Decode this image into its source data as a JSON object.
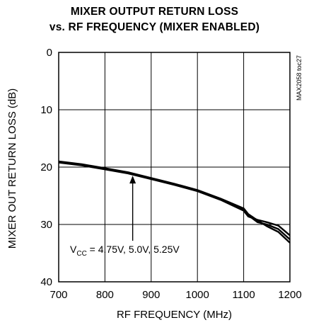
{
  "chart_data": {
    "type": "line",
    "title": [
      "MIXER OUTPUT RETURN LOSS",
      "vs. RF  FREQUENCY (MIXER ENABLED)"
    ],
    "xlabel": "RF FREQUENCY (MHz)",
    "ylabel": "MIXER OUT RETURN LOSS (dB)",
    "xlim": [
      700,
      1200
    ],
    "ylim": [
      0,
      40
    ],
    "y_inverted": true,
    "grid": true,
    "xticks": [
      700,
      800,
      900,
      1000,
      1100,
      1200
    ],
    "yticks": [
      0,
      10,
      20,
      30,
      40
    ],
    "watermark": "MAX2058 toc27",
    "annotation": {
      "prefix": "V",
      "subscript": "CC",
      "text": " = 4.75V, 5.0V, 5.25V",
      "arrow_to": [
        860,
        21
      ]
    },
    "series": [
      {
        "x": [
          700,
          750,
          800,
          850,
          900,
          950,
          1000,
          1050,
          1100,
          1110,
          1130,
          1150,
          1175,
          1200
        ],
        "y": [
          19.0,
          19.5,
          20.2,
          20.9,
          21.9,
          22.9,
          24.0,
          25.5,
          27.2,
          28.2,
          29.3,
          30.3,
          31.3,
          33.2
        ]
      },
      {
        "x": [
          700,
          750,
          800,
          850,
          900,
          950,
          1000,
          1050,
          1100,
          1110,
          1130,
          1150,
          1175,
          1200
        ],
        "y": [
          19.1,
          19.6,
          20.3,
          21.0,
          22.0,
          23.0,
          24.1,
          25.6,
          27.4,
          28.4,
          29.6,
          30.0,
          30.8,
          32.6
        ]
      },
      {
        "x": [
          700,
          750,
          800,
          850,
          900,
          950,
          1000,
          1050,
          1100,
          1110,
          1130,
          1150,
          1175,
          1200
        ],
        "y": [
          19.2,
          19.7,
          20.4,
          21.1,
          22.1,
          23.1,
          24.2,
          25.7,
          27.6,
          28.6,
          29.2,
          29.6,
          30.2,
          31.9
        ]
      }
    ]
  }
}
